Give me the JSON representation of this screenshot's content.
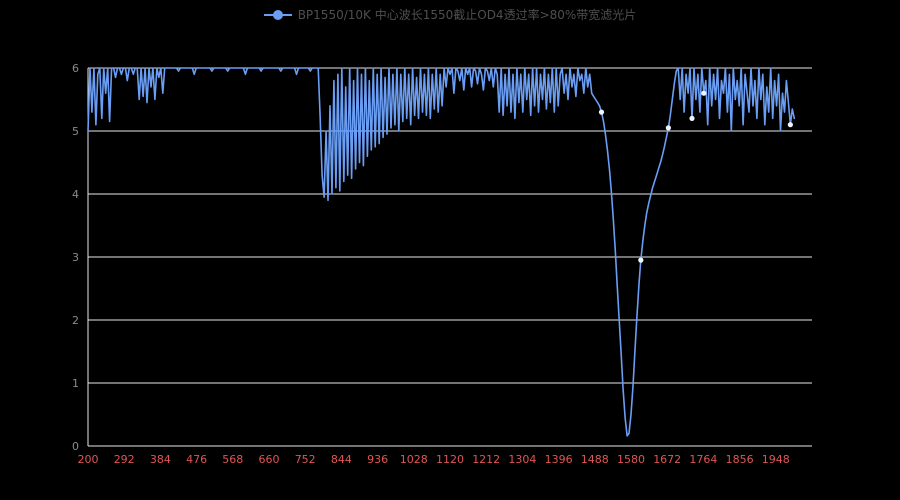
{
  "legend": {
    "label": "BP1550/10K 中心波长1550截止OD4透过率>80%带宽滤光片"
  },
  "colors": {
    "background": "#000000",
    "line": "#6a9ef5",
    "marker_fill": "#eef5ff",
    "grid": "#e8e8e8",
    "x_label": "#e05555",
    "y_label": "#8a8a8a",
    "legend_text": "#4f4f4f"
  },
  "chart_data": {
    "type": "line",
    "title": "BP1550/10K 中心波长1550截止OD4透过率>80%带宽滤光片",
    "xlabel": "",
    "ylabel": "",
    "legend_position": "top-center",
    "grid": true,
    "x_min": 200,
    "x_max": 2040,
    "ylim": [
      0,
      6
    ],
    "yticks": [
      0,
      1,
      2,
      3,
      4,
      5,
      6
    ],
    "xticks": [
      200,
      292,
      384,
      476,
      568,
      660,
      752,
      844,
      936,
      1028,
      1120,
      1212,
      1304,
      1396,
      1488,
      1580,
      1672,
      1764,
      1856,
      1948
    ],
    "x_start": 200,
    "x_step": 5,
    "marker_x": [
      1505,
      1605,
      1675,
      1735,
      1765,
      1985
    ],
    "series": [
      {
        "name": "BP1550/10K 中心波长1550截止OD4透过率>80%带宽滤光片",
        "values": [
          5.0,
          6,
          5.3,
          6,
          5.1,
          5.9,
          6,
          5.2,
          6,
          5.6,
          6,
          5.15,
          6,
          6,
          5.85,
          6,
          6,
          5.9,
          6,
          6,
          5.8,
          6,
          6,
          5.9,
          6,
          6,
          5.5,
          6,
          5.55,
          6,
          5.45,
          6,
          5.7,
          6,
          5.5,
          6,
          5.85,
          6,
          5.6,
          6,
          6,
          6,
          6,
          6,
          6,
          6,
          5.95,
          6,
          6,
          6,
          6,
          6,
          6,
          6,
          5.9,
          6,
          6,
          6,
          6,
          6,
          6,
          6,
          6,
          5.95,
          6,
          6,
          6,
          6,
          6,
          6,
          6,
          5.95,
          6,
          6,
          6,
          6,
          6,
          6,
          6,
          6,
          5.9,
          6,
          6,
          6,
          6,
          6,
          6,
          6,
          5.95,
          6,
          6,
          6,
          6,
          6,
          6,
          6,
          6,
          6,
          5.95,
          6,
          6,
          6,
          6,
          6,
          6,
          6,
          5.9,
          6,
          6,
          6,
          6,
          6,
          6,
          5.95,
          6,
          6,
          6,
          6,
          5.2,
          4.3,
          3.95,
          5.0,
          3.9,
          5.4,
          4.0,
          5.8,
          4.1,
          5.9,
          4.05,
          6,
          4.2,
          5.7,
          4.3,
          6,
          4.25,
          5.8,
          4.4,
          6,
          4.5,
          5.9,
          4.45,
          6,
          4.6,
          5.8,
          4.7,
          6,
          4.75,
          5.9,
          4.8,
          6,
          4.9,
          5.85,
          4.95,
          6,
          5.05,
          5.9,
          5.1,
          6,
          5.0,
          5.9,
          5.15,
          6,
          5.2,
          5.9,
          5.1,
          6,
          5.25,
          5.85,
          5.2,
          6,
          5.3,
          5.9,
          5.25,
          6,
          5.2,
          5.9,
          5.35,
          6,
          5.3,
          5.9,
          5.4,
          6,
          5.7,
          6,
          5.9,
          6,
          5.6,
          6,
          5.95,
          5.8,
          6,
          5.65,
          6,
          5.9,
          6,
          5.7,
          6,
          5.95,
          5.75,
          6,
          5.9,
          5.65,
          6,
          5.95,
          5.8,
          6,
          5.7,
          6,
          5.9,
          5.3,
          6,
          5.25,
          5.9,
          5.4,
          6,
          5.3,
          5.9,
          5.2,
          6,
          5.45,
          5.9,
          5.3,
          6,
          5.5,
          5.9,
          5.25,
          6,
          5.4,
          6,
          5.3,
          5.9,
          5.5,
          6,
          5.35,
          5.9,
          5.45,
          6,
          5.3,
          6,
          5.4,
          5.9,
          6,
          5.6,
          5.9,
          5.5,
          6,
          5.7,
          5.9,
          5.55,
          6,
          5.8,
          5.9,
          5.6,
          6,
          5.7,
          5.9,
          5.6,
          5.55,
          5.5,
          5.45,
          5.4,
          5.3,
          5.15,
          4.95,
          4.7,
          4.4,
          4.05,
          3.6,
          3.1,
          2.55,
          2.0,
          1.45,
          0.9,
          0.45,
          0.16,
          0.2,
          0.5,
          0.95,
          1.5,
          2.05,
          2.55,
          2.95,
          3.25,
          3.5,
          3.7,
          3.85,
          3.98,
          4.1,
          4.2,
          4.3,
          4.4,
          4.5,
          4.62,
          4.75,
          4.9,
          5.05,
          5.25,
          5.5,
          5.75,
          5.95,
          6,
          5.5,
          6,
          5.3,
          5.9,
          5.6,
          6,
          5.2,
          6,
          5.5,
          5.9,
          5.3,
          6,
          5.6,
          5.8,
          5.1,
          6,
          5.4,
          5.9,
          5.5,
          6,
          5.2,
          5.8,
          5.6,
          6,
          5.3,
          5.9,
          5.0,
          6,
          5.5,
          5.8,
          5.4,
          6,
          5.1,
          5.9,
          5.6,
          5.3,
          6,
          5.4,
          5.8,
          5.2,
          6,
          5.5,
          5.9,
          5.1,
          5.7,
          5.3,
          6,
          5.2,
          5.8,
          5.4,
          5.9,
          5.0,
          5.6,
          5.3,
          5.8,
          5.45,
          5.1,
          5.35,
          5.2
        ]
      }
    ]
  }
}
